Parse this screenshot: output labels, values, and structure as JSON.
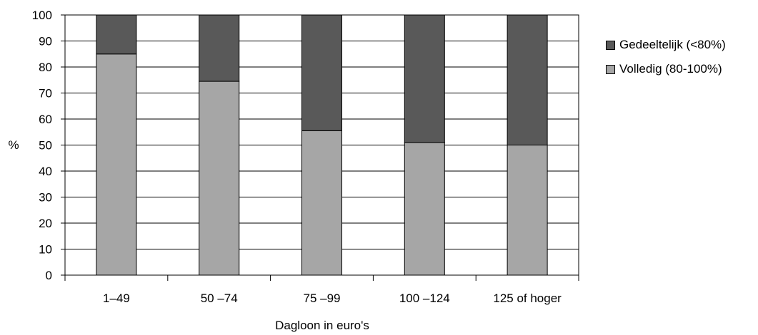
{
  "chart_data": {
    "type": "bar",
    "stacked": true,
    "categories": [
      "1–49",
      "50 –74",
      "75 –99",
      "100 –124",
      "125 of hoger"
    ],
    "series": [
      {
        "name": "Volledig (80-100%)",
        "color": "#a6a6a6",
        "values": [
          85,
          74.5,
          55.5,
          51,
          50
        ]
      },
      {
        "name": "Gedeeltelijk (<80%)",
        "color": "#595959",
        "values": [
          15,
          25.5,
          44.5,
          49,
          50
        ]
      }
    ],
    "xlabel": "Dagloon in euro's",
    "ylabel": "%",
    "ylim": [
      0,
      100
    ],
    "yticks": [
      0,
      10,
      20,
      30,
      40,
      50,
      60,
      70,
      80,
      90,
      100
    ],
    "grid": true,
    "legend_position": "right",
    "legend_order": [
      "Gedeeltelijk (<80%)",
      "Volledig (80-100%)"
    ]
  }
}
